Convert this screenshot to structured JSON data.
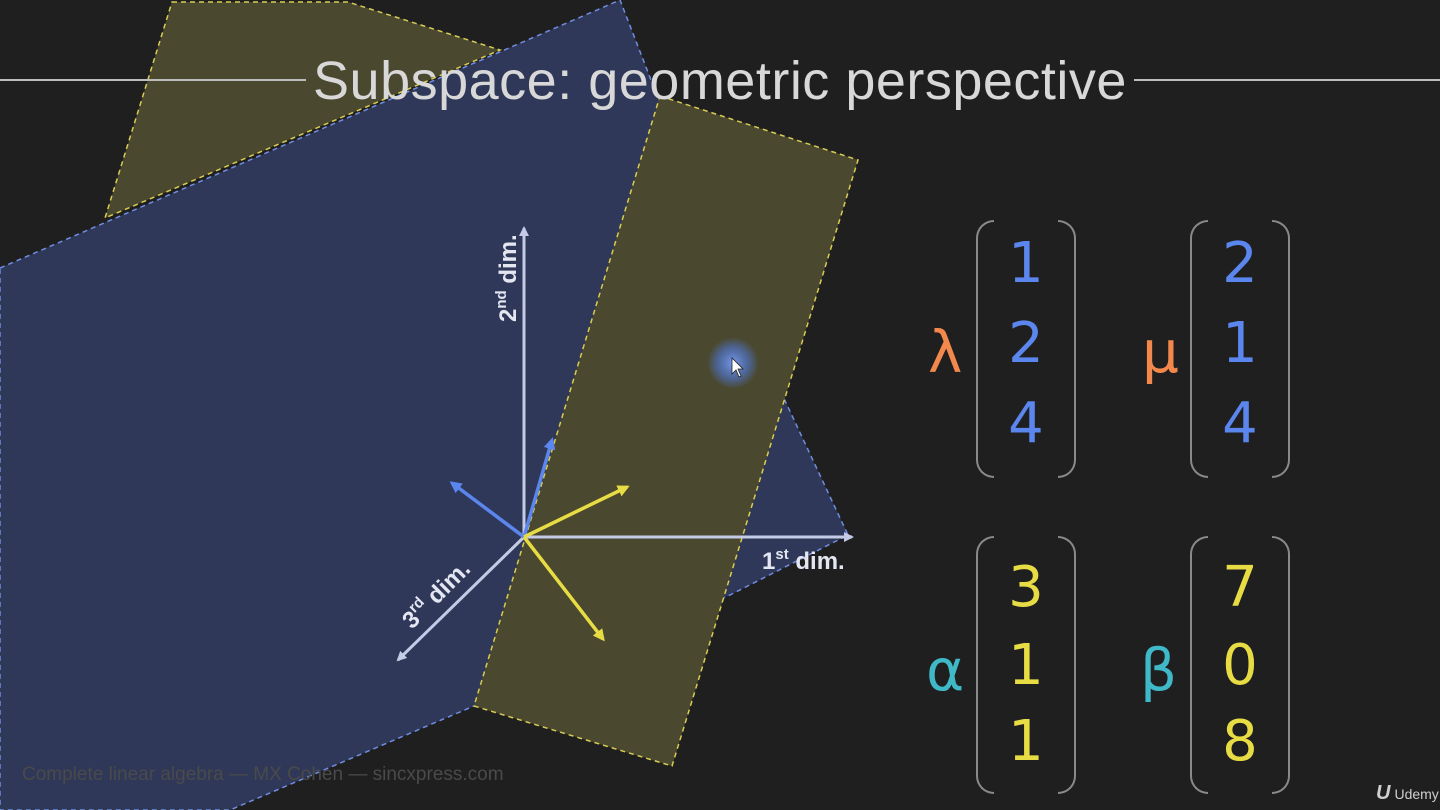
{
  "slide": {
    "title": "Subspace: geometric perspective",
    "footer": "Complete linear algebra — MX Cohen — sincxpress.com",
    "logo": "Udemy"
  },
  "axes": {
    "x_label_sup": "st",
    "x_label_num": "1",
    "x_label_tail": " dim.",
    "y_label_num": "2",
    "y_label_sup": "nd",
    "y_label_tail": " dim.",
    "z_label_num": "3",
    "z_label_sup": "rd",
    "z_label_tail": " dim."
  },
  "vectors": {
    "lambda": {
      "symbol": "λ",
      "values": [
        "1",
        "2",
        "4"
      ]
    },
    "mu": {
      "symbol": "μ",
      "values": [
        "2",
        "1",
        "4"
      ]
    },
    "alpha": {
      "symbol": "α",
      "values": [
        "3",
        "1",
        "1"
      ]
    },
    "beta": {
      "symbol": "β",
      "values": [
        "7",
        "0",
        "8"
      ]
    }
  },
  "colors": {
    "background": "#1f1f1f",
    "blue_plane": "#2f3858",
    "yellow_plane": "#4a482e",
    "blue_vector": "#5b86ee",
    "yellow_vector": "#e8dc45",
    "axis": "#c4cbe6",
    "coef_orange": "#f2884b",
    "coef_cyan": "#3fb9c8"
  }
}
